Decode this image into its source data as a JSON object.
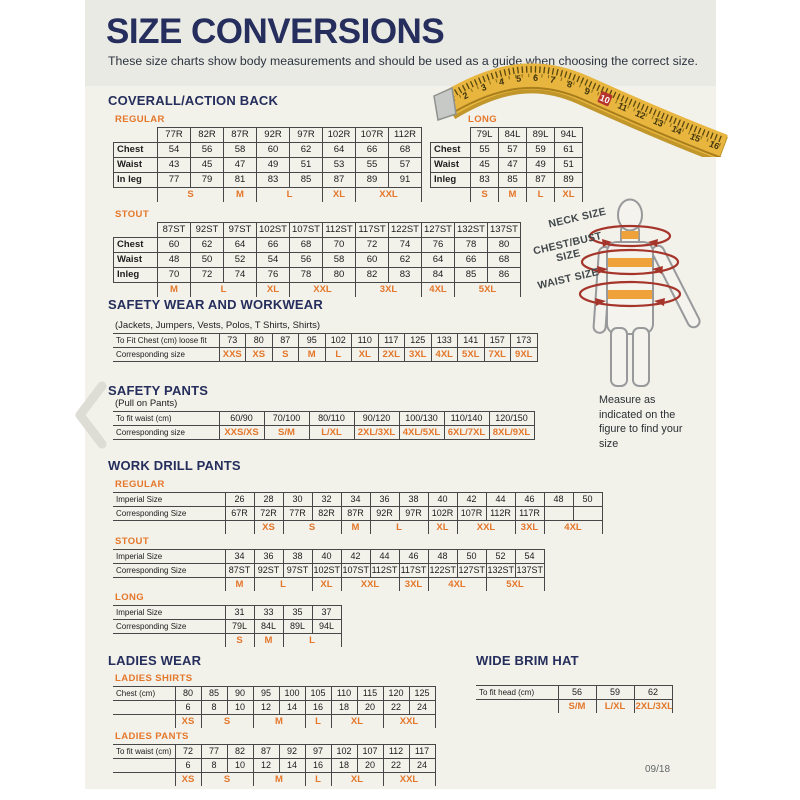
{
  "page": {
    "title": "SIZE CONVERSIONS",
    "subtitle": "These size charts show body measurements and should be used as a guide when choosing the correct size.",
    "footer": "09/18"
  },
  "colors": {
    "navy": "#252e5c",
    "orange": "#e4772a",
    "page_cream": "#f2f1ea",
    "tape_yellow": "#e8b53e",
    "highlight_red": "#b5352c",
    "border_gray": "#474747"
  },
  "tape": {
    "numbers": [
      "2",
      "3",
      "4",
      "5",
      "6",
      "7",
      "8",
      "9",
      "10",
      "11",
      "12",
      "13",
      "14",
      "15",
      "16"
    ],
    "highlight": "10"
  },
  "figure": {
    "neck_label": "NECK SIZE",
    "chest_label": "CHEST/BUST SIZE",
    "waist_label": "WAIST SIZE",
    "note": "Measure as indicated on the figure to find your size"
  },
  "sections": {
    "coverall": {
      "heading": "COVERALL/ACTION BACK",
      "regular": {
        "label": "REGULAR",
        "table": {
          "header": [
            "77R",
            "82R",
            "87R",
            "92R",
            "97R",
            "102R",
            "107R",
            "112R"
          ],
          "rows": [
            {
              "label": "Chest",
              "values": [
                54,
                56,
                58,
                60,
                62,
                64,
                66,
                68
              ]
            },
            {
              "label": "Waist",
              "values": [
                43,
                45,
                47,
                49,
                51,
                53,
                55,
                57
              ]
            },
            {
              "label": "In leg",
              "values": [
                77,
                79,
                81,
                83,
                85,
                87,
                89,
                91
              ]
            }
          ],
          "sizes": [
            {
              "label": "S",
              "span": 2
            },
            {
              "label": "M",
              "span": 1
            },
            {
              "label": "L",
              "span": 2
            },
            {
              "label": "XL",
              "span": 1
            },
            {
              "label": "XXL",
              "span": 2
            }
          ]
        }
      },
      "long": {
        "label": "LONG",
        "table": {
          "header": [
            "79L",
            "84L",
            "89L",
            "94L"
          ],
          "rows": [
            {
              "label": "Chest",
              "values": [
                55,
                57,
                59,
                61
              ]
            },
            {
              "label": "Waist",
              "values": [
                45,
                47,
                49,
                51
              ]
            },
            {
              "label": "Inleg",
              "values": [
                83,
                85,
                87,
                89
              ]
            }
          ],
          "sizes": [
            {
              "label": "S",
              "span": 1
            },
            {
              "label": "M",
              "span": 1
            },
            {
              "label": "L",
              "span": 1
            },
            {
              "label": "XL",
              "span": 1
            }
          ]
        }
      },
      "stout": {
        "label": "STOUT",
        "table": {
          "header": [
            "87ST",
            "92ST",
            "97ST",
            "102ST",
            "107ST",
            "112ST",
            "117ST",
            "122ST",
            "127ST",
            "132ST",
            "137ST"
          ],
          "rows": [
            {
              "label": "Chest",
              "values": [
                60,
                62,
                64,
                66,
                68,
                70,
                72,
                74,
                76,
                78,
                80
              ]
            },
            {
              "label": "Waist",
              "values": [
                48,
                50,
                52,
                54,
                56,
                58,
                60,
                62,
                64,
                66,
                68
              ]
            },
            {
              "label": "Inleg",
              "values": [
                70,
                72,
                74,
                76,
                78,
                80,
                82,
                83,
                84,
                85,
                86
              ]
            }
          ],
          "sizes": [
            {
              "label": "M",
              "span": 1
            },
            {
              "label": "L",
              "span": 2
            },
            {
              "label": "XL",
              "span": 1
            },
            {
              "label": "XXL",
              "span": 2
            },
            {
              "label": "3XL",
              "span": 2
            },
            {
              "label": "4XL",
              "span": 1
            },
            {
              "label": "5XL",
              "span": 2
            }
          ]
        }
      }
    },
    "safety_wear": {
      "heading": "SAFETY WEAR AND WORKWEAR",
      "note": "(Jackets, Jumpers, Vests, Polos, T Shirts, Shirts)",
      "table": {
        "rows": [
          {
            "label": "To Fit Chest (cm) loose fit",
            "values": [
              73,
              80,
              87,
              95,
              102,
              110,
              117,
              125,
              133,
              141,
              157,
              173
            ]
          },
          {
            "label": "Corresponding size",
            "orange": true,
            "values": [
              "XXS",
              "XS",
              "S",
              "M",
              "L",
              "XL",
              "2XL",
              "3XL",
              "4XL",
              "5XL",
              "7XL",
              "9XL"
            ]
          }
        ]
      }
    },
    "safety_pants": {
      "heading": "SAFETY PANTS",
      "note": "(Pull on Pants)",
      "table": {
        "rows": [
          {
            "label": "To fit waist (cm)",
            "values": [
              "60/90",
              "70/100",
              "80/110",
              "90/120",
              "100/130",
              "110/140",
              "120/150"
            ]
          },
          {
            "label": "Corresponding size",
            "orange": true,
            "values": [
              "XXS/XS",
              "S/M",
              "L/XL",
              "2XL/3XL",
              "4XL/5XL",
              "6XL/7XL",
              "8XL/9XL"
            ]
          }
        ]
      }
    },
    "work_drill": {
      "heading": "WORK DRILL PANTS",
      "regular": {
        "label": "REGULAR",
        "table": {
          "rows": [
            {
              "label": "Imperial Size",
              "values": [
                26,
                28,
                30,
                32,
                34,
                36,
                38,
                40,
                42,
                44,
                46,
                48,
                50
              ]
            },
            {
              "label": "Corresponding Size",
              "values": [
                "67R",
                "72R",
                "77R",
                "82R",
                "87R",
                "92R",
                "97R",
                "102R",
                "107R",
                "112R",
                "117R",
                "",
                ""
              ]
            }
          ],
          "sizes": [
            {
              "label": "",
              "span": 1
            },
            {
              "label": "XS",
              "span": 1
            },
            {
              "label": "S",
              "span": 2
            },
            {
              "label": "M",
              "span": 1
            },
            {
              "label": "L",
              "span": 2
            },
            {
              "label": "XL",
              "span": 1
            },
            {
              "label": "XXL",
              "span": 2
            },
            {
              "label": "3XL",
              "span": 1
            },
            {
              "label": "4XL",
              "span": 2
            }
          ]
        }
      },
      "stout": {
        "label": "STOUT",
        "table": {
          "rows": [
            {
              "label": "Imperial Size",
              "values": [
                34,
                36,
                38,
                40,
                42,
                44,
                46,
                48,
                50,
                52,
                54
              ]
            },
            {
              "label": "Corresponding Size",
              "values": [
                "87ST",
                "92ST",
                "97ST",
                "102ST",
                "107ST",
                "112ST",
                "117ST",
                "122ST",
                "127ST",
                "132ST",
                "137ST"
              ]
            }
          ],
          "sizes": [
            {
              "label": "M",
              "span": 1
            },
            {
              "label": "L",
              "span": 2
            },
            {
              "label": "XL",
              "span": 1
            },
            {
              "label": "XXL",
              "span": 2
            },
            {
              "label": "3XL",
              "span": 1
            },
            {
              "label": "4XL",
              "span": 2
            },
            {
              "label": "5XL",
              "span": 2
            }
          ]
        }
      },
      "long": {
        "label": "LONG",
        "table": {
          "rows": [
            {
              "label": "Imperial Size",
              "values": [
                31,
                33,
                35,
                37
              ]
            },
            {
              "label": "Corresponding Size",
              "values": [
                "79L",
                "84L",
                "89L",
                "94L"
              ]
            }
          ],
          "sizes": [
            {
              "label": "S",
              "span": 1
            },
            {
              "label": "M",
              "span": 1
            },
            {
              "label": "L",
              "span": 2
            }
          ]
        }
      }
    },
    "ladies": {
      "heading": "LADIES WEAR",
      "shirts": {
        "label": "LADIES SHIRTS",
        "table": {
          "rows": [
            {
              "label": "Chest (cm)",
              "values": [
                80,
                85,
                90,
                95,
                100,
                105,
                110,
                115,
                120,
                125
              ]
            },
            {
              "label": "",
              "values": [
                6,
                8,
                10,
                12,
                14,
                16,
                18,
                20,
                22,
                24
              ]
            }
          ],
          "sizes": [
            {
              "label": "XS",
              "span": 1
            },
            {
              "label": "S",
              "span": 2
            },
            {
              "label": "M",
              "span": 2
            },
            {
              "label": "L",
              "span": 1
            },
            {
              "label": "XL",
              "span": 2
            },
            {
              "label": "XXL",
              "span": 2
            }
          ]
        }
      },
      "pants": {
        "label": "LADIES PANTS",
        "table": {
          "rows": [
            {
              "label": "To fit waist (cm)",
              "values": [
                72,
                77,
                82,
                87,
                92,
                97,
                102,
                107,
                112,
                117
              ]
            },
            {
              "label": "",
              "values": [
                6,
                8,
                10,
                12,
                14,
                16,
                18,
                20,
                22,
                24
              ]
            }
          ],
          "sizes": [
            {
              "label": "XS",
              "span": 1
            },
            {
              "label": "S",
              "span": 2
            },
            {
              "label": "M",
              "span": 2
            },
            {
              "label": "L",
              "span": 1
            },
            {
              "label": "XL",
              "span": 2
            },
            {
              "label": "XXL",
              "span": 2
            }
          ]
        }
      }
    },
    "hat": {
      "heading": "WIDE BRIM HAT",
      "table": {
        "rows": [
          {
            "label": "To fit head (cm)",
            "values": [
              56,
              59,
              62
            ]
          }
        ],
        "sizes": [
          {
            "label": "S/M",
            "span": 1
          },
          {
            "label": "L/XL",
            "span": 1
          },
          {
            "label": "2XL/3XL",
            "span": 1
          }
        ]
      }
    }
  }
}
